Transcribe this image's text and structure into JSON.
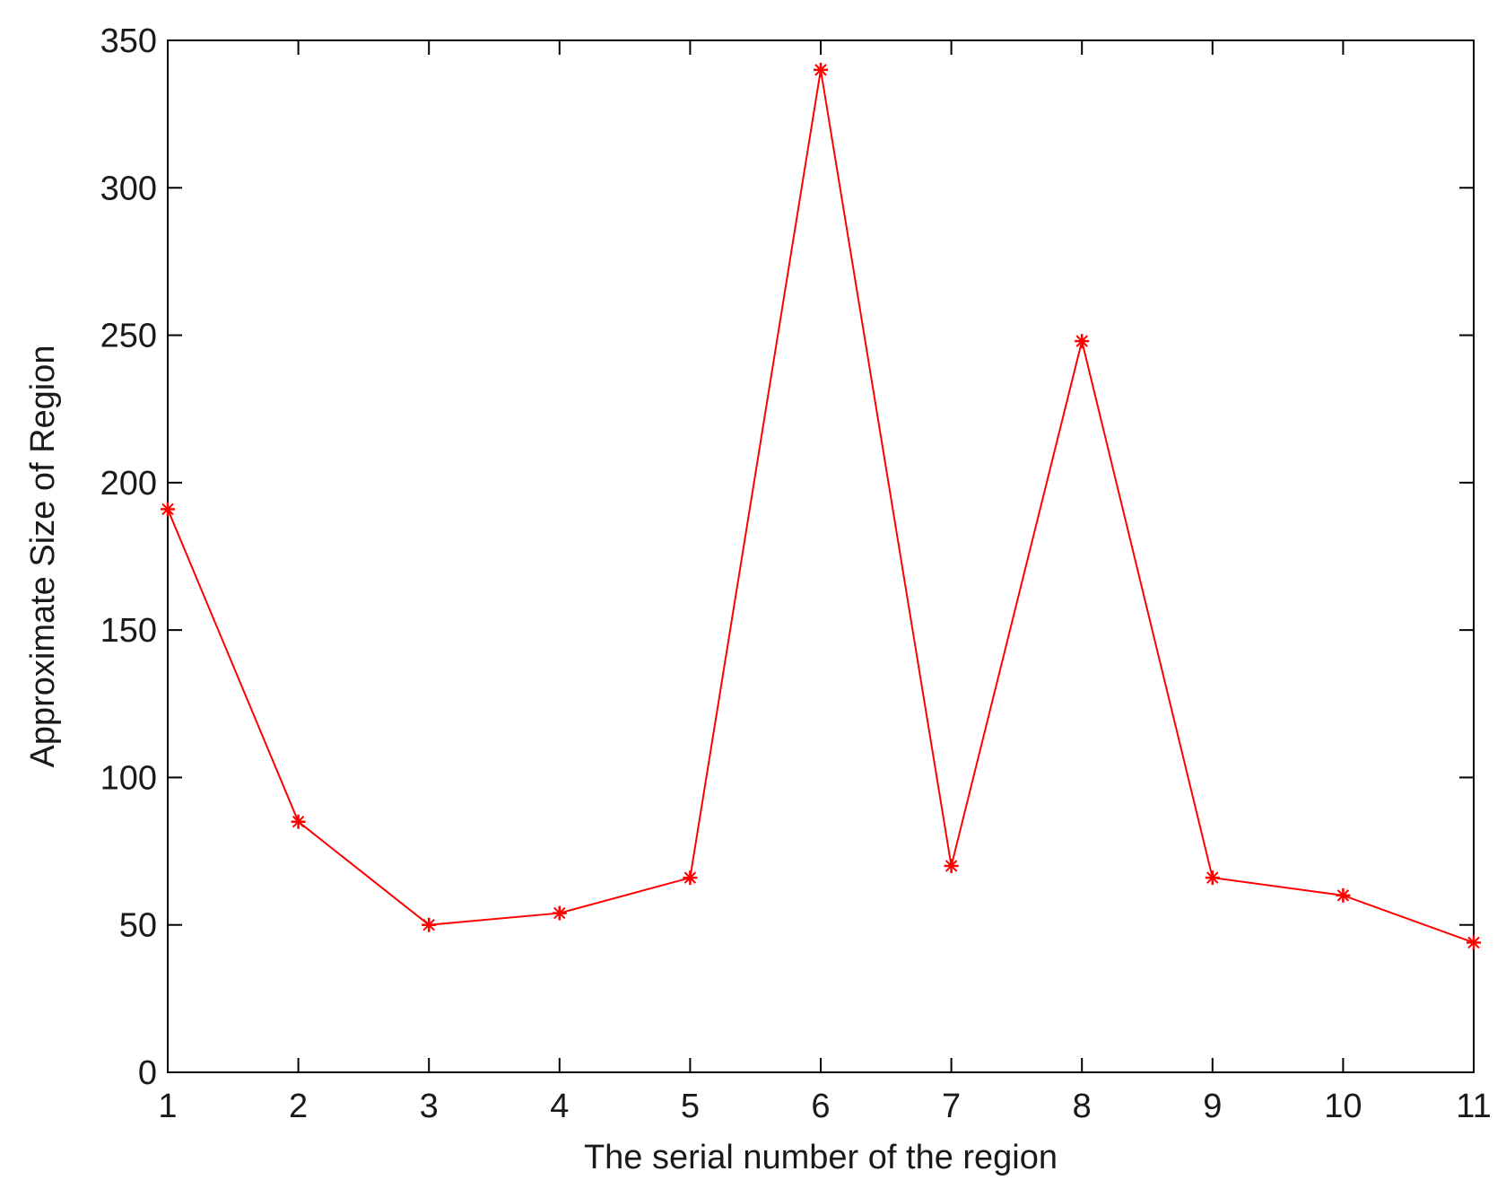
{
  "chart_data": {
    "type": "line",
    "title": "",
    "xlabel": "The serial number of the region",
    "ylabel": "Approximate Size of Region",
    "x": [
      1,
      2,
      3,
      4,
      5,
      6,
      7,
      8,
      9,
      10,
      11
    ],
    "x_ticks": [
      "1",
      "2",
      "3",
      "4",
      "5",
      "6",
      "7",
      "8",
      "9",
      "10",
      "11"
    ],
    "y_ticks": [
      "0",
      "50",
      "100",
      "150",
      "200",
      "250",
      "300",
      "350"
    ],
    "xlim": [
      1,
      11
    ],
    "ylim": [
      0,
      350
    ],
    "grid": false,
    "series": [
      {
        "values": [
          191,
          85,
          50,
          54,
          66,
          340,
          70,
          248,
          66,
          60,
          44
        ],
        "color": "#ff0000",
        "marker": "plus-star"
      }
    ]
  }
}
